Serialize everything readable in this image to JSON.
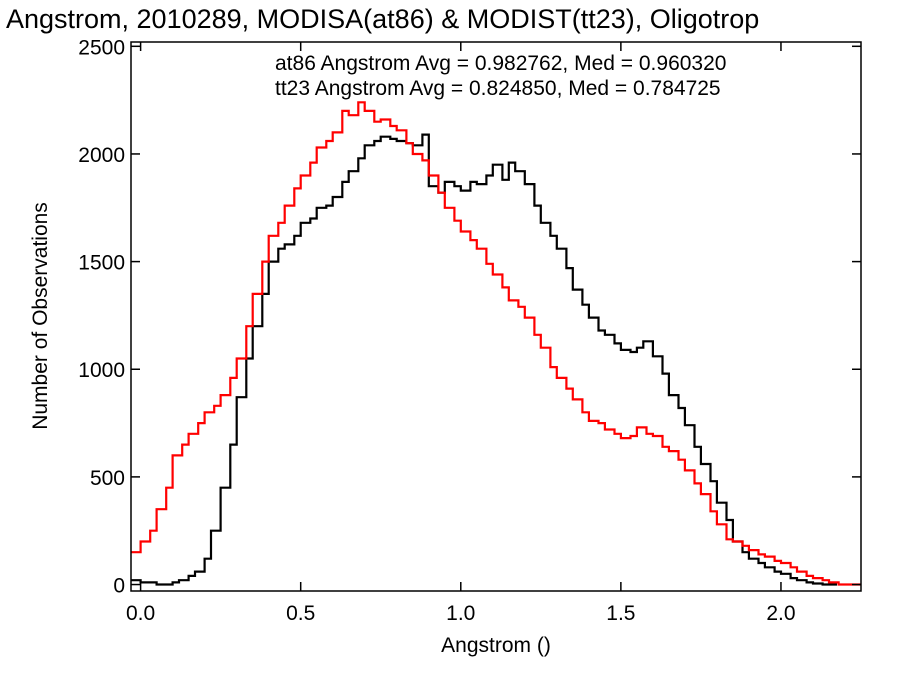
{
  "chart_data": {
    "type": "line",
    "title": "Angstrom, 2010289, MODISA(at86) & MODIST(tt23), Oligotrop",
    "xlabel": "Angstrom ()",
    "ylabel": "Number of Observations",
    "xlim": [
      -0.03,
      2.25
    ],
    "ylim": [
      -30,
      2520
    ],
    "x_ticks": [
      0.0,
      0.5,
      1.0,
      1.5,
      2.0
    ],
    "x_tick_labels": [
      "0.0",
      "0.5",
      "1.0",
      "1.5",
      "2.0"
    ],
    "y_ticks": [
      0,
      500,
      1000,
      1500,
      2000,
      2500
    ],
    "y_tick_labels": [
      "0",
      "500",
      "1000",
      "1500",
      "2000",
      "2500"
    ],
    "grid": false,
    "legend_placement": "top-right",
    "legend": [
      {
        "text": "at86 Angstrom Avg = 0.982762, Med = 0.960320",
        "color": "#000000"
      },
      {
        "text": "tt23 Angstrom Avg = 0.824850, Med = 0.784725",
        "color": "#ff0000"
      }
    ],
    "series": [
      {
        "color": "#000000",
        "step": true,
        "x": [
          -0.03,
          0.0,
          0.05,
          0.1,
          0.12,
          0.15,
          0.17,
          0.2,
          0.22,
          0.25,
          0.28,
          0.3,
          0.33,
          0.35,
          0.38,
          0.4,
          0.43,
          0.45,
          0.48,
          0.5,
          0.53,
          0.55,
          0.58,
          0.6,
          0.63,
          0.65,
          0.68,
          0.7,
          0.73,
          0.75,
          0.78,
          0.8,
          0.83,
          0.85,
          0.88,
          0.9,
          0.93,
          0.95,
          0.98,
          1.0,
          1.03,
          1.05,
          1.08,
          1.1,
          1.13,
          1.15,
          1.17,
          1.2,
          1.23,
          1.25,
          1.28,
          1.3,
          1.33,
          1.35,
          1.38,
          1.4,
          1.43,
          1.45,
          1.48,
          1.5,
          1.53,
          1.55,
          1.57,
          1.6,
          1.63,
          1.65,
          1.68,
          1.7,
          1.73,
          1.75,
          1.78,
          1.8,
          1.83,
          1.85,
          1.88,
          1.9,
          1.93,
          1.95,
          1.98,
          2.0,
          2.03,
          2.05,
          2.08,
          2.1,
          2.13,
          2.15
        ],
        "y": [
          20,
          10,
          0,
          10,
          20,
          40,
          60,
          120,
          250,
          450,
          650,
          870,
          1050,
          1200,
          1350,
          1500,
          1560,
          1580,
          1620,
          1680,
          1700,
          1750,
          1760,
          1800,
          1870,
          1920,
          1980,
          2040,
          2060,
          2080,
          2070,
          2060,
          2050,
          2040,
          2090,
          1850,
          1820,
          1870,
          1850,
          1830,
          1870,
          1860,
          1900,
          1950,
          1880,
          1960,
          1920,
          1860,
          1760,
          1680,
          1620,
          1560,
          1470,
          1370,
          1300,
          1240,
          1180,
          1160,
          1120,
          1090,
          1080,
          1100,
          1130,
          1060,
          980,
          880,
          820,
          740,
          640,
          560,
          480,
          380,
          300,
          200,
          150,
          120,
          100,
          80,
          60,
          50,
          30,
          20,
          10,
          5,
          0,
          0
        ]
      },
      {
        "color": "#ff0000",
        "step": true,
        "x": [
          -0.03,
          0.0,
          0.03,
          0.05,
          0.08,
          0.1,
          0.13,
          0.15,
          0.18,
          0.2,
          0.23,
          0.25,
          0.28,
          0.3,
          0.33,
          0.35,
          0.38,
          0.4,
          0.43,
          0.45,
          0.48,
          0.5,
          0.53,
          0.55,
          0.58,
          0.6,
          0.63,
          0.65,
          0.68,
          0.7,
          0.73,
          0.75,
          0.78,
          0.8,
          0.83,
          0.85,
          0.88,
          0.9,
          0.93,
          0.95,
          0.98,
          1.0,
          1.03,
          1.05,
          1.08,
          1.1,
          1.13,
          1.15,
          1.18,
          1.2,
          1.23,
          1.25,
          1.28,
          1.3,
          1.33,
          1.35,
          1.38,
          1.4,
          1.43,
          1.45,
          1.48,
          1.5,
          1.53,
          1.55,
          1.58,
          1.6,
          1.63,
          1.65,
          1.68,
          1.7,
          1.73,
          1.75,
          1.78,
          1.8,
          1.83,
          1.85,
          1.88,
          1.9,
          1.93,
          1.95,
          1.98,
          2.0,
          2.03,
          2.05,
          2.08,
          2.1,
          2.13,
          2.15,
          2.18,
          2.25
        ],
        "y": [
          150,
          200,
          250,
          350,
          450,
          600,
          650,
          700,
          750,
          800,
          830,
          880,
          960,
          1050,
          1200,
          1350,
          1500,
          1620,
          1680,
          1760,
          1840,
          1900,
          1960,
          2030,
          2060,
          2100,
          2200,
          2180,
          2240,
          2200,
          2150,
          2160,
          2130,
          2110,
          2050,
          2000,
          1970,
          1900,
          1820,
          1750,
          1690,
          1640,
          1600,
          1560,
          1490,
          1440,
          1380,
          1320,
          1290,
          1240,
          1160,
          1100,
          1010,
          960,
          910,
          860,
          800,
          760,
          750,
          720,
          700,
          680,
          690,
          730,
          700,
          690,
          640,
          620,
          580,
          530,
          470,
          420,
          340,
          280,
          210,
          200,
          180,
          160,
          140,
          130,
          110,
          100,
          80,
          60,
          40,
          30,
          20,
          10,
          0,
          0
        ]
      }
    ]
  }
}
